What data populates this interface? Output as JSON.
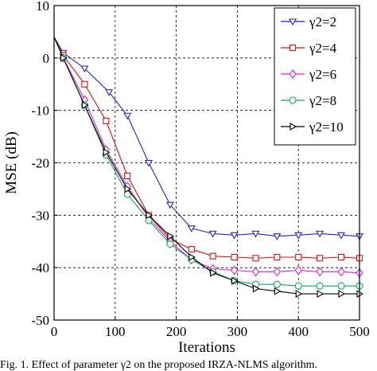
{
  "chart_data": {
    "type": "line",
    "title": "",
    "xlabel": "Iterations",
    "ylabel": "MSE (dB)",
    "xlim": [
      0,
      500
    ],
    "ylim": [
      -50,
      10
    ],
    "xticks": [
      0,
      100,
      200,
      300,
      400,
      500
    ],
    "yticks": [
      10,
      0,
      -10,
      -20,
      -30,
      -40,
      -50
    ],
    "grid": true,
    "legend_position": "top-right",
    "series": [
      {
        "name": "γ2=2",
        "color": "#2222cc",
        "marker": "triangle-down",
        "x": [
          0,
          15,
          50,
          90,
          120,
          155,
          190,
          225,
          260,
          295,
          330,
          365,
          400,
          435,
          470,
          500
        ],
        "y": [
          4,
          1,
          -2,
          -6.5,
          -11,
          -20,
          -28,
          -32.5,
          -33.5,
          -33.8,
          -33.5,
          -34,
          -33.8,
          -33.5,
          -33.8,
          -34
        ]
      },
      {
        "name": "γ2=4",
        "color": "#dd1111",
        "marker": "square",
        "x": [
          0,
          15,
          50,
          85,
          120,
          155,
          190,
          225,
          260,
          295,
          330,
          365,
          400,
          435,
          470,
          500
        ],
        "y": [
          4,
          0.5,
          -5,
          -12,
          -22.5,
          -30,
          -34.5,
          -36.5,
          -37.8,
          -38,
          -38.2,
          -38,
          -38,
          -38.2,
          -38,
          -38.2
        ]
      },
      {
        "name": "γ2=6",
        "color": "#dd22dd",
        "marker": "diamond",
        "x": [
          0,
          15,
          50,
          85,
          120,
          155,
          190,
          225,
          260,
          295,
          330,
          365,
          400,
          435,
          470,
          500
        ],
        "y": [
          4,
          0,
          -8,
          -17.5,
          -24.5,
          -30.5,
          -35,
          -38.5,
          -40.2,
          -40.5,
          -40.8,
          -40.8,
          -40.5,
          -40.8,
          -40.8,
          -41
        ]
      },
      {
        "name": "γ2=8",
        "color": "#11aa55",
        "marker": "circle",
        "x": [
          0,
          15,
          50,
          85,
          120,
          155,
          190,
          225,
          260,
          295,
          330,
          365,
          400,
          435,
          470,
          500
        ],
        "y": [
          4,
          0,
          -9,
          -18.5,
          -26,
          -31,
          -35.5,
          -38.5,
          -40.8,
          -42.5,
          -43.2,
          -43.2,
          -43.5,
          -43.5,
          -43.5,
          -43.5
        ]
      },
      {
        "name": "γ2=10",
        "color": "#000000",
        "marker": "triangle-right",
        "x": [
          0,
          15,
          50,
          85,
          120,
          155,
          190,
          225,
          260,
          295,
          330,
          365,
          400,
          435,
          470,
          500
        ],
        "y": [
          4,
          0,
          -9,
          -18,
          -25,
          -30,
          -34,
          -38,
          -41,
          -42.5,
          -44,
          -44.5,
          -45,
          -45,
          -45,
          -45
        ]
      }
    ]
  },
  "caption": "Fig. 1.  Effect of parameter γ2 on the proposed IRZA-NLMS algorithm."
}
